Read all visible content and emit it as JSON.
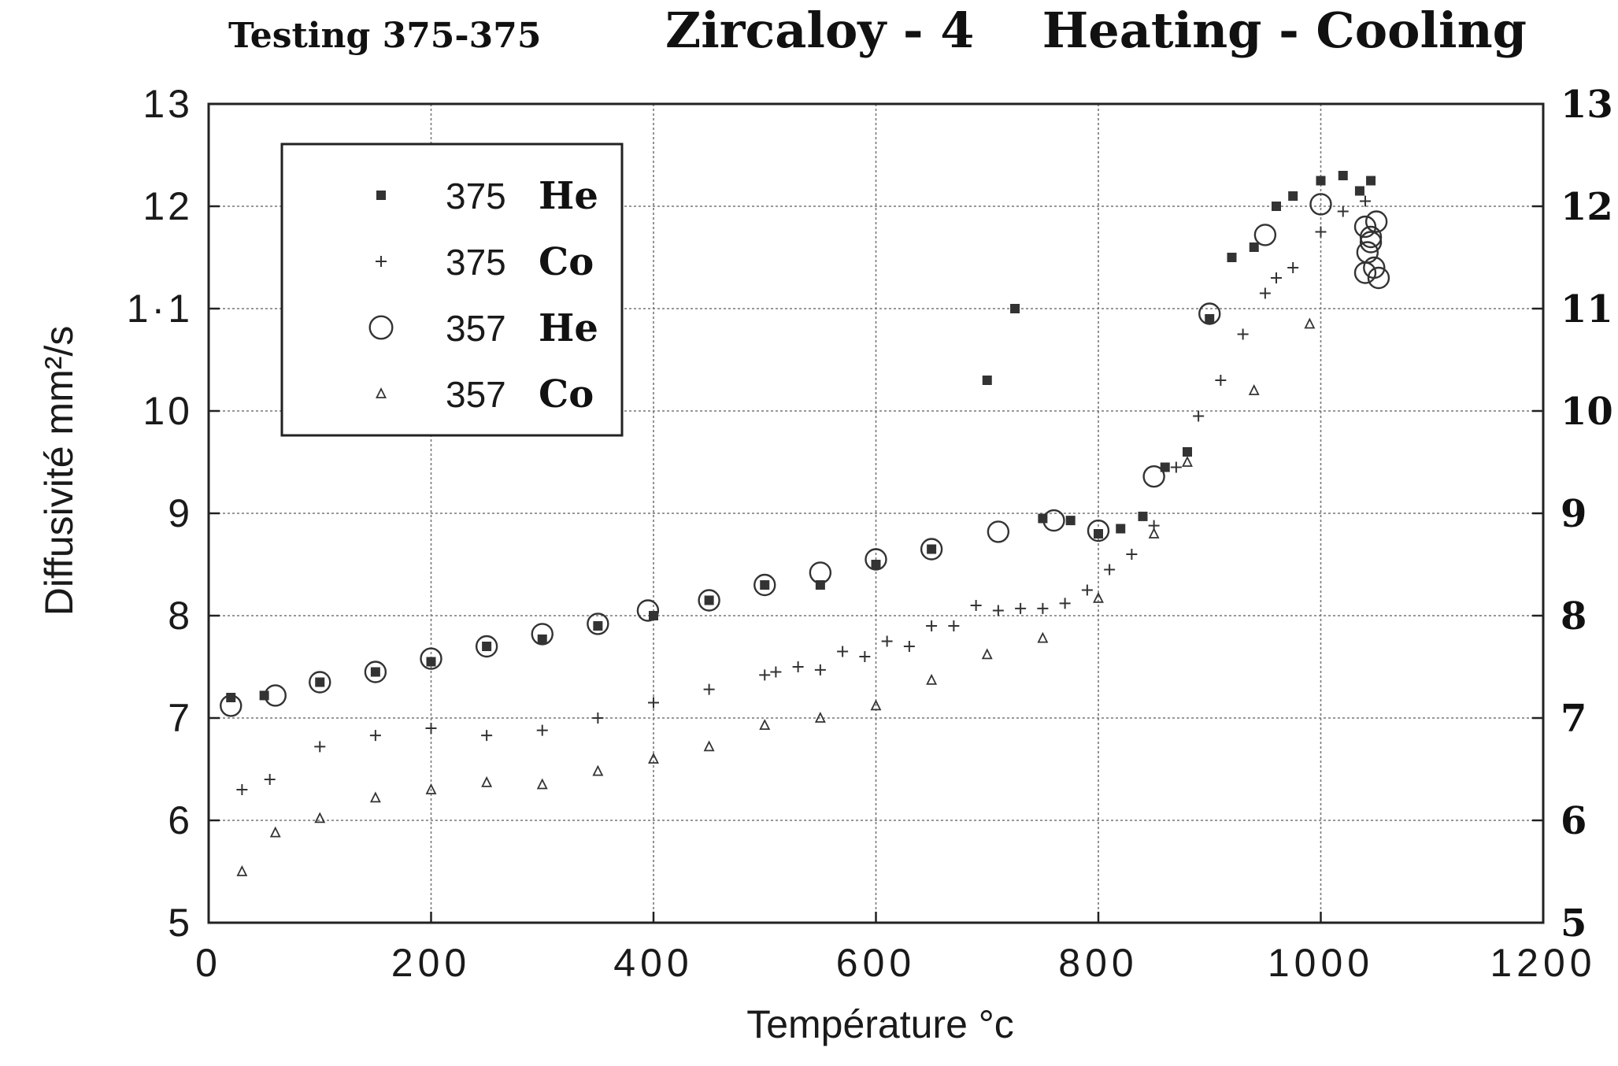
{
  "header": {
    "left_title": "Testing 375-375",
    "main_title": "Zircaloy - 4    Heating - Cooling"
  },
  "chart_data": {
    "type": "scatter",
    "title": "Zircaloy - 4    Heating - Cooling",
    "subtitle": "Testing 375-375",
    "xlabel": "Température °c",
    "ylabel": "Diffusivité  mm²/s",
    "xlim": [
      0,
      1200
    ],
    "ylim": [
      5,
      13
    ],
    "x_ticks": [
      "0",
      "200",
      "400",
      "600",
      "800",
      "1000",
      "1200"
    ],
    "y_ticks_left": [
      "5",
      "6",
      "7",
      "8",
      "9",
      "10",
      "1·1",
      "12",
      "13"
    ],
    "y_ticks_right": [
      "5",
      "6",
      "7",
      "8",
      "9",
      "10",
      "11",
      "12",
      "13"
    ],
    "grid": true,
    "legend_position": "top-left",
    "series": [
      {
        "name": "375 He",
        "legend_number": "375",
        "legend_gas": "He",
        "marker": "square",
        "x": [
          20,
          50,
          100,
          150,
          200,
          250,
          300,
          350,
          400,
          450,
          500,
          550,
          600,
          650,
          700,
          725,
          750,
          775,
          800,
          820,
          840,
          860,
          880,
          900,
          920,
          940,
          960,
          975,
          1000,
          1020,
          1035,
          1045
        ],
        "y": [
          7.2,
          7.22,
          7.35,
          7.45,
          7.55,
          7.7,
          7.77,
          7.9,
          8.0,
          8.15,
          8.3,
          8.3,
          8.5,
          8.65,
          10.3,
          11.0,
          8.95,
          8.93,
          8.8,
          8.85,
          8.97,
          9.45,
          9.6,
          10.9,
          11.5,
          11.6,
          12.0,
          12.1,
          12.25,
          12.3,
          12.15,
          12.25
        ]
      },
      {
        "name": "375 Co",
        "legend_number": "375",
        "legend_gas": "Co",
        "marker": "plus",
        "x": [
          30,
          55,
          100,
          150,
          200,
          250,
          300,
          350,
          400,
          450,
          500,
          510,
          530,
          550,
          570,
          590,
          610,
          630,
          650,
          670,
          690,
          710,
          730,
          750,
          770,
          790,
          810,
          830,
          850,
          870,
          890,
          910,
          930,
          950,
          960,
          975,
          1000,
          1020,
          1040
        ],
        "y": [
          6.3,
          6.4,
          6.72,
          6.83,
          6.9,
          6.83,
          6.88,
          7.0,
          7.15,
          7.28,
          7.42,
          7.45,
          7.5,
          7.47,
          7.65,
          7.6,
          7.75,
          7.7,
          7.9,
          7.9,
          8.1,
          8.05,
          8.07,
          8.07,
          8.12,
          8.25,
          8.45,
          8.6,
          8.88,
          9.45,
          9.95,
          10.3,
          10.75,
          11.15,
          11.3,
          11.4,
          11.75,
          11.95,
          12.05
        ]
      },
      {
        "name": "357 He",
        "legend_number": "357",
        "legend_gas": "He",
        "marker": "circle",
        "x": [
          20,
          60,
          100,
          150,
          200,
          250,
          300,
          350,
          395,
          450,
          500,
          550,
          600,
          650,
          710,
          760,
          800,
          850,
          900,
          950,
          1000,
          1040,
          1045,
          1050,
          1042,
          1048,
          1045,
          1040,
          1052
        ],
        "y": [
          7.12,
          7.22,
          7.35,
          7.45,
          7.58,
          7.7,
          7.82,
          7.92,
          8.05,
          8.15,
          8.3,
          8.42,
          8.55,
          8.65,
          8.82,
          8.93,
          8.83,
          9.36,
          10.95,
          11.72,
          12.02,
          11.8,
          11.7,
          11.85,
          11.55,
          11.4,
          11.65,
          11.35,
          11.3
        ]
      },
      {
        "name": "357 Co",
        "legend_number": "357",
        "legend_gas": "Co",
        "marker": "triangle",
        "x": [
          30,
          60,
          100,
          150,
          200,
          250,
          300,
          350,
          400,
          450,
          500,
          550,
          600,
          650,
          700,
          750,
          800,
          850,
          880,
          940,
          990
        ],
        "y": [
          5.5,
          5.88,
          6.02,
          6.22,
          6.3,
          6.37,
          6.35,
          6.48,
          6.6,
          6.72,
          6.93,
          7.0,
          7.12,
          7.37,
          7.62,
          7.78,
          8.17,
          8.8,
          9.5,
          10.2,
          10.85
        ]
      }
    ]
  }
}
